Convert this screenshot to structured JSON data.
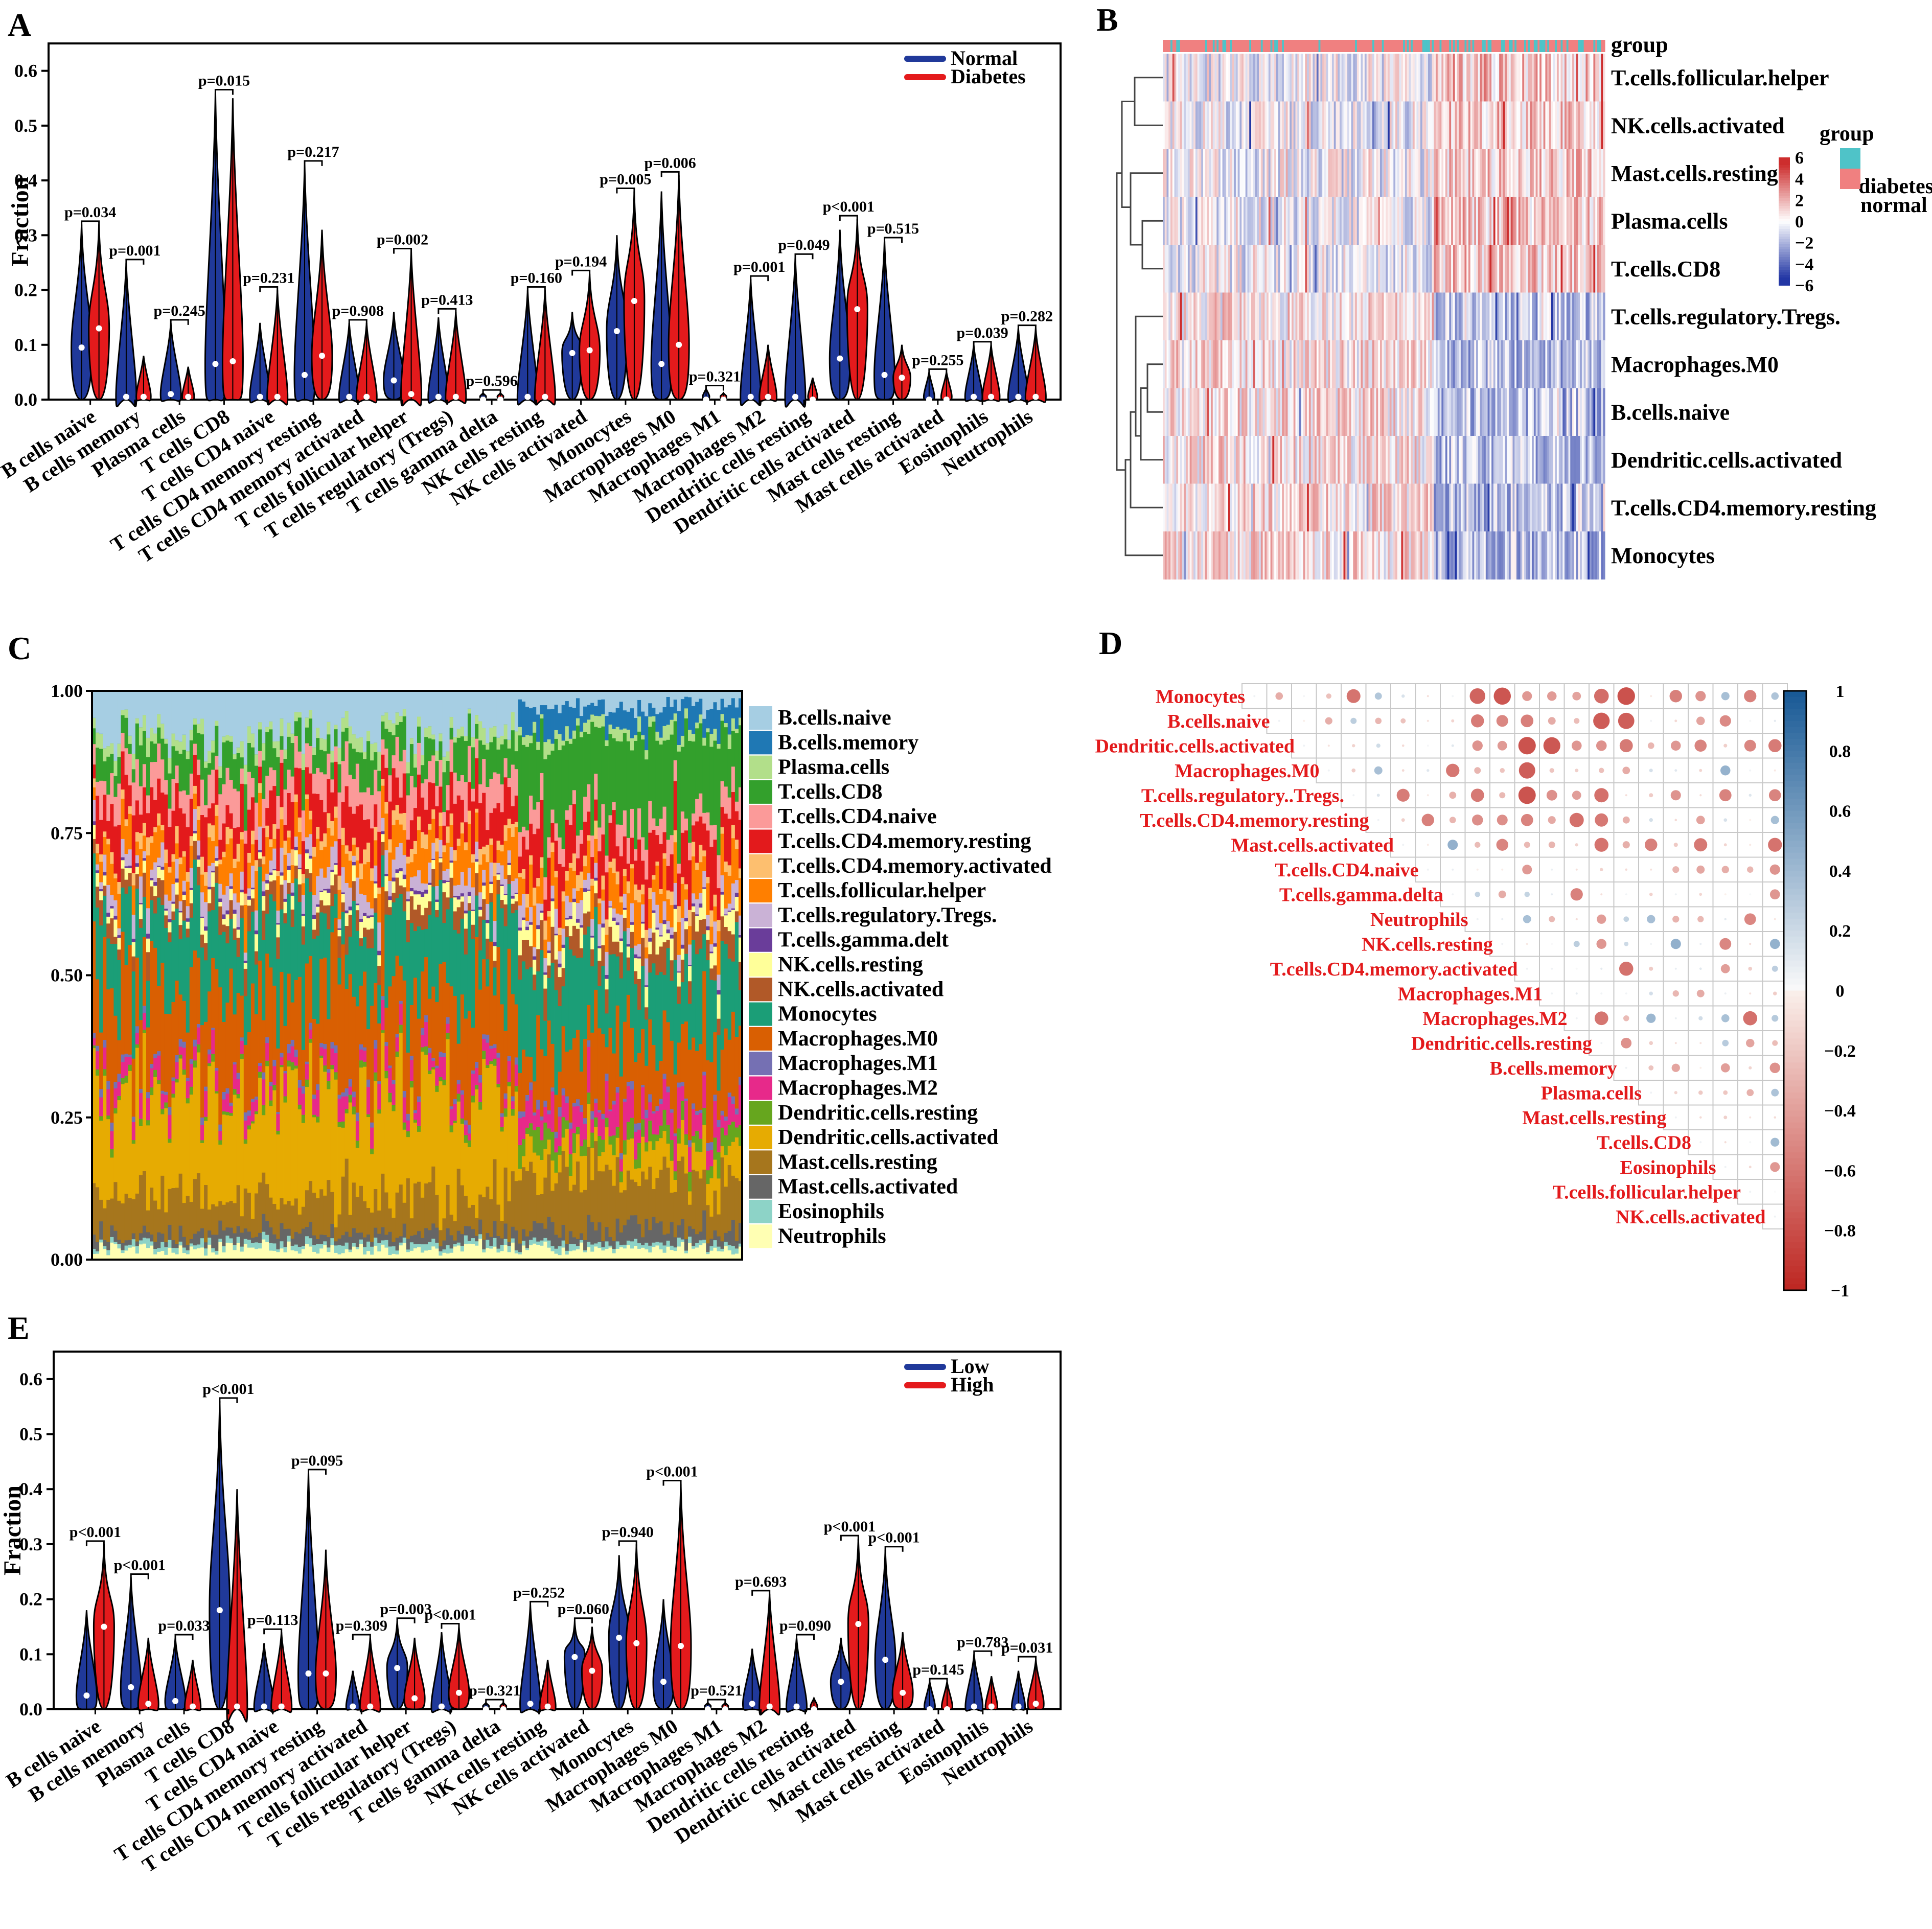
{
  "panels": {
    "A": "A",
    "B": "B",
    "C": "C",
    "D": "D",
    "E": "E"
  },
  "colors": {
    "blue": "#20399a",
    "red": "#e41a1c",
    "teal": "#4fc3c8",
    "salmon": "#f08080"
  },
  "chart_data": [
    {
      "id": "A",
      "type": "violin",
      "ylabel": "Fraction",
      "ylim": [
        0,
        0.65
      ],
      "yticks": [
        "0.0",
        "0.1",
        "0.2",
        "0.3",
        "0.4",
        "0.5",
        "0.6"
      ],
      "legend": [
        "Normal",
        "Diabetes"
      ],
      "categories": [
        "B cells naive",
        "B cells memory",
        "Plasma cells",
        "T cells CD8",
        "T cells CD4 naive",
        "T cells CD4 memory resting",
        "T cells CD4 memory activated",
        "T cells follicular helper",
        "T cells regulatory (Tregs)",
        "T cells gamma delta",
        "NK cells resting",
        "NK cells activated",
        "Monocytes",
        "Macrophages M0",
        "Macrophages M1",
        "Macrophages M2",
        "Dendritic cells resting",
        "Dendritic cells activated",
        "Mast cells resting",
        "Mast cells activated",
        "Eosinophils",
        "Neutrophils"
      ],
      "pvalues": [
        "p=0.034",
        "p=0.001",
        "p=0.245",
        "p=0.015",
        "p=0.231",
        "p=0.217",
        "p=0.908",
        "p=0.002",
        "p=0.413",
        "p=0.596",
        "p=0.160",
        "p=0.194",
        "p=0.005",
        "p=0.006",
        "p=0.321",
        "p=0.001",
        "p=0.049",
        "p<0.001",
        "p=0.515",
        "p=0.255",
        "p=0.039",
        "p=0.282"
      ],
      "max1": [
        0.32,
        0.25,
        0.14,
        0.56,
        0.14,
        0.43,
        0.14,
        0.16,
        0.15,
        0.01,
        0.2,
        0.16,
        0.3,
        0.38,
        0.02,
        0.22,
        0.26,
        0.31,
        0.29,
        0.05,
        0.1,
        0.13
      ],
      "max2": [
        0.32,
        0.08,
        0.06,
        0.55,
        0.2,
        0.31,
        0.14,
        0.27,
        0.16,
        0.01,
        0.2,
        0.23,
        0.38,
        0.41,
        0.01,
        0.1,
        0.04,
        0.33,
        0.1,
        0.05,
        0.1,
        0.13
      ],
      "med1": [
        0.095,
        0.005,
        0.01,
        0.065,
        0.005,
        0.045,
        0.005,
        0.035,
        0.005,
        0,
        0.005,
        0.085,
        0.125,
        0.065,
        0,
        0.005,
        0.005,
        0.075,
        0.045,
        0,
        0.005,
        0.005
      ],
      "med2": [
        0.13,
        0.005,
        0.005,
        0.07,
        0.005,
        0.08,
        0.005,
        0.01,
        0.005,
        0,
        0.005,
        0.09,
        0.18,
        0.1,
        0,
        0.005,
        0,
        0.165,
        0.04,
        0,
        0.005,
        0.005
      ]
    },
    {
      "id": "E",
      "type": "violin",
      "ylabel": "Fraction",
      "ylim": [
        0,
        0.65
      ],
      "yticks": [
        "0.0",
        "0.1",
        "0.2",
        "0.3",
        "0.4",
        "0.5",
        "0.6"
      ],
      "legend": [
        "Low",
        "High"
      ],
      "categories": [
        "B cells naive",
        "B cells memory",
        "Plasma cells",
        "T cells CD8",
        "T cells CD4 naive",
        "T cells CD4 memory resting",
        "T cells CD4 memory activated",
        "T cells follicular helper",
        "T cells regulatory (Tregs)",
        "T cells gamma delta",
        "NK cells resting",
        "NK cells activated",
        "Monocytes",
        "Macrophages M0",
        "Macrophages M1",
        "Macrophages M2",
        "Dendritic cells resting",
        "Dendritic cells activated",
        "Mast cells resting",
        "Mast cells activated",
        "Eosinophils",
        "Neutrophils"
      ],
      "pvalues": [
        "p<0.001",
        "p<0.001",
        "p=0.033",
        "p<0.001",
        "p=0.113",
        "p=0.095",
        "p=0.309",
        "p=0.003",
        "p<0.001",
        "p=0.321",
        "p=0.252",
        "p=0.060",
        "p=0.940",
        "p<0.001",
        "p=0.521",
        "p=0.693",
        "p=0.090",
        "p<0.001",
        "p<0.001",
        "p=0.145",
        "p=0.783",
        "p=0.031"
      ],
      "max1": [
        0.18,
        0.24,
        0.13,
        0.56,
        0.12,
        0.43,
        0.07,
        0.16,
        0.14,
        0.01,
        0.19,
        0.16,
        0.28,
        0.2,
        0.01,
        0.11,
        0.13,
        0.13,
        0.29,
        0.05,
        0.1,
        0.07
      ],
      "max2": [
        0.3,
        0.13,
        0.09,
        0.4,
        0.14,
        0.29,
        0.13,
        0.13,
        0.15,
        0.01,
        0.09,
        0.15,
        0.3,
        0.41,
        0.01,
        0.21,
        0.02,
        0.31,
        0.14,
        0.05,
        0.06,
        0.09
      ],
      "med1": [
        0.025,
        0.04,
        0.015,
        0.18,
        0.005,
        0.065,
        0.005,
        0.075,
        0.005,
        0,
        0.01,
        0.095,
        0.13,
        0.05,
        0,
        0.01,
        0.005,
        0.05,
        0.09,
        0,
        0.005,
        0.005
      ],
      "med2": [
        0.15,
        0.01,
        0.005,
        0.005,
        0.005,
        0.065,
        0.005,
        0.02,
        0.03,
        0,
        0.005,
        0.07,
        0.12,
        0.115,
        0,
        0.005,
        0,
        0.155,
        0.03,
        0,
        0.005,
        0.01
      ]
    },
    {
      "id": "B",
      "type": "heatmap",
      "rows": [
        "T.cells.follicular.helper",
        "NK.cells.activated",
        "Mast.cells.resting",
        "Plasma.cells",
        "T.cells.CD8",
        "T.cells.regulatory.Tregs.",
        "Macrophages.M0",
        "B.cells.naive",
        "Dendritic.cells.activated",
        "T.cells.CD4.memory.resting",
        "Monocytes"
      ],
      "annotation_label": "group",
      "legend_title": "group",
      "legend_items": [
        "diabetes",
        "normal"
      ],
      "scale": [
        "6",
        "4",
        "2",
        "0",
        "−2",
        "−4",
        "−6"
      ]
    },
    {
      "id": "C",
      "type": "stacked_bar",
      "yticks": [
        "0.00",
        "0.25",
        "0.50",
        "0.75",
        "1.00"
      ],
      "series": [
        "B.cells.naive",
        "B.cells.memory",
        "Plasma.cells",
        "T.cells.CD8",
        "T.cells.CD4.naive",
        "T.cells.CD4.memory.resting",
        "T.cells.CD4.memory.activated",
        "T.cells.follicular.helper",
        "T.cells.regulatory.Tregs.",
        "T.cells.gamma.delt",
        "NK.cells.resting",
        "NK.cells.activated",
        "Monocytes",
        "Macrophages.M0",
        "Macrophages.M1",
        "Macrophages.M2",
        "Dendritic.cells.resting",
        "Dendritic.cells.activated",
        "Mast.cells.resting",
        "Mast.cells.activated",
        "Eosinophils",
        "Neutrophils"
      ],
      "series_colors": [
        "#a6cee3",
        "#1f78b4",
        "#b2df8a",
        "#33a02c",
        "#fb9a99",
        "#e31a1c",
        "#fdbf6f",
        "#ff7f00",
        "#cab2d6",
        "#6a3d9a",
        "#ffff99",
        "#b15928",
        "#1b9e77",
        "#d95f02",
        "#7570b3",
        "#e7298a",
        "#66a61e",
        "#e6ab02",
        "#a6761d",
        "#666666",
        "#8dd3c7",
        "#ffffb3"
      ]
    },
    {
      "id": "D",
      "type": "correlation",
      "labels": [
        "Monocytes",
        "B.cells.naive",
        "Dendritic.cells.activated",
        "Macrophages.M0",
        "T.cells.regulatory..Tregs.",
        "T.cells.CD4.memory.resting",
        "Mast.cells.activated",
        "T.cells.CD4.naive",
        "T.cells.gamma.delta",
        "Neutrophils",
        "NK.cells.resting",
        "T.cells.CD4.memory.activated",
        "Macrophages.M1",
        "Macrophages.M2",
        "Dendritic.cells.resting",
        "B.cells.memory",
        "Plasma.cells",
        "Mast.cells.resting",
        "T.cells.CD8",
        "Eosinophils",
        "T.cells.follicular.helper",
        "NK.cells.activated"
      ],
      "colorbar": [
        "1",
        "0.8",
        "0.6",
        "0.4",
        "0.2",
        "0",
        "−0.2",
        "−0.4",
        "−0.6",
        "−0.8",
        "−1"
      ]
    }
  ]
}
